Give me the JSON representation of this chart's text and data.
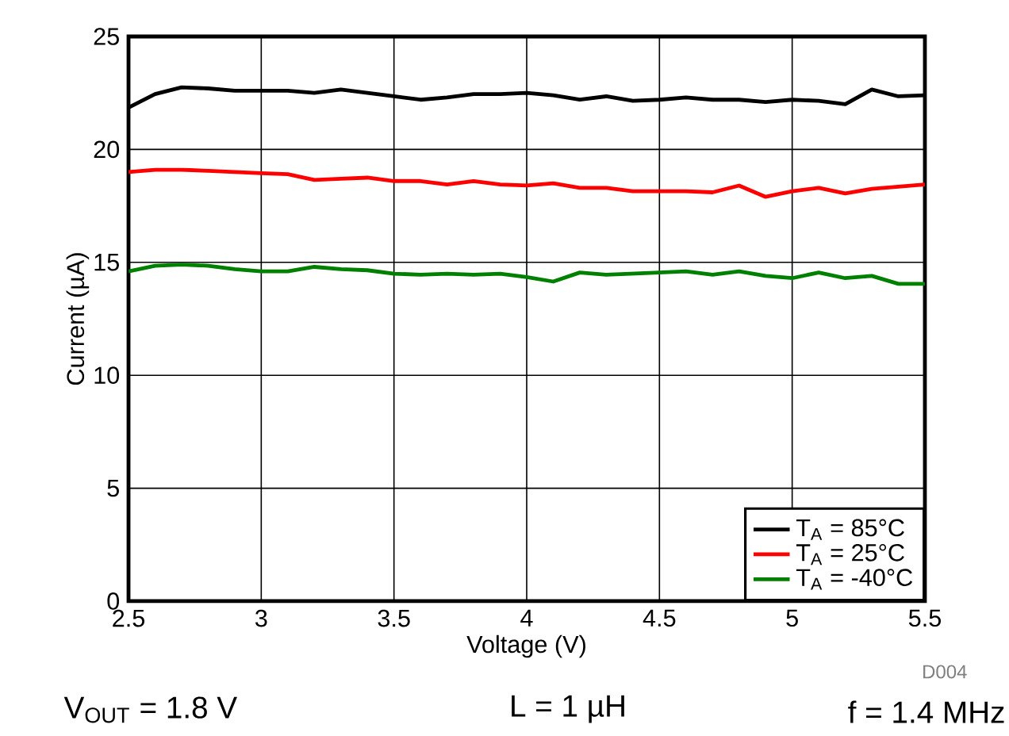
{
  "chart_data": {
    "type": "line",
    "xlabel": "Voltage (V)",
    "ylabel": "Current (µA)",
    "x": [
      2.5,
      2.6,
      2.7,
      2.8,
      2.9,
      3.0,
      3.1,
      3.2,
      3.3,
      3.4,
      3.5,
      3.6,
      3.7,
      3.8,
      3.9,
      4.0,
      4.1,
      4.2,
      4.3,
      4.4,
      4.5,
      4.6,
      4.7,
      4.8,
      4.9,
      5.0,
      5.1,
      5.2,
      5.3,
      5.4,
      5.5
    ],
    "series": [
      {
        "name": "T$_{A}$ = 85°C",
        "color": "#000000",
        "values": [
          21.85,
          22.45,
          22.75,
          22.7,
          22.6,
          22.6,
          22.6,
          22.5,
          22.65,
          22.5,
          22.35,
          22.2,
          22.3,
          22.45,
          22.45,
          22.5,
          22.4,
          22.2,
          22.35,
          22.15,
          22.2,
          22.3,
          22.2,
          22.2,
          22.1,
          22.2,
          22.15,
          22.0,
          22.65,
          22.35,
          22.4
        ]
      },
      {
        "name": "T$_{A}$ = 25°C",
        "color": "#ff0000",
        "values": [
          19.0,
          19.1,
          19.1,
          19.05,
          19.0,
          18.95,
          18.9,
          18.65,
          18.7,
          18.75,
          18.6,
          18.6,
          18.45,
          18.6,
          18.45,
          18.4,
          18.5,
          18.3,
          18.3,
          18.15,
          18.15,
          18.15,
          18.1,
          18.4,
          17.9,
          18.15,
          18.3,
          18.05,
          18.25,
          18.35,
          18.45
        ]
      },
      {
        "name": "T$_{A}$ = -40°C",
        "color": "#008000",
        "values": [
          14.6,
          14.85,
          14.9,
          14.85,
          14.7,
          14.6,
          14.6,
          14.8,
          14.7,
          14.65,
          14.5,
          14.45,
          14.5,
          14.45,
          14.5,
          14.35,
          14.15,
          14.55,
          14.45,
          14.5,
          14.55,
          14.6,
          14.45,
          14.6,
          14.4,
          14.3,
          14.55,
          14.3,
          14.4,
          14.05,
          14.05
        ]
      }
    ],
    "xlim": [
      2.5,
      5.5
    ],
    "ylim": [
      0,
      25
    ],
    "xticks": [
      2.5,
      3,
      3.5,
      4,
      4.5,
      5,
      5.5
    ],
    "yticks": [
      0,
      5,
      10,
      15,
      20,
      25
    ],
    "grid": true,
    "legend": "bottom right",
    "marker": "none",
    "line_style": "solid",
    "annotations": [
      "V$_{OUT}$ = 1.8 V",
      "L = 1 µH",
      "f = 1.4 MHz",
      "D004"
    ]
  }
}
